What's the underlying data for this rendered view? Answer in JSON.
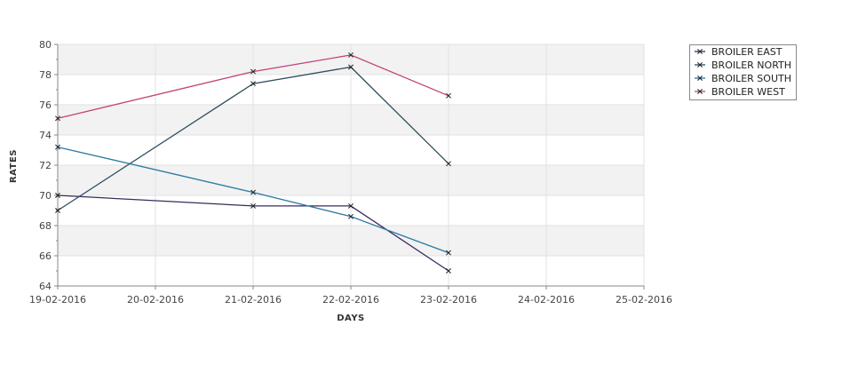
{
  "chart_data": {
    "type": "line",
    "title": "",
    "xlabel": "DAYS",
    "ylabel": "RATES",
    "x": [
      "19-02-2016",
      "20-02-2016",
      "21-02-2016",
      "22-02-2016",
      "23-02-2016",
      "24-02-2016",
      "25-02-2016"
    ],
    "ylim": [
      64,
      80
    ],
    "yticks": [
      64,
      66,
      68,
      70,
      72,
      74,
      76,
      78,
      80
    ],
    "grid": true,
    "legend_position": "top-right",
    "series": [
      {
        "name": "BROILER EAST",
        "color": "#3b2a5c",
        "points": [
          [
            "19-02-2016",
            70.0
          ],
          [
            "21-02-2016",
            69.3
          ],
          [
            "22-02-2016",
            69.3
          ],
          [
            "23-02-2016",
            65.0
          ]
        ]
      },
      {
        "name": "BROILER NORTH",
        "color": "#2d4e5e",
        "points": [
          [
            "19-02-2016",
            69.0
          ],
          [
            "21-02-2016",
            77.4
          ],
          [
            "22-02-2016",
            78.5
          ],
          [
            "23-02-2016",
            72.1
          ]
        ]
      },
      {
        "name": "BROILER SOUTH",
        "color": "#2a78a3",
        "points": [
          [
            "19-02-2016",
            73.2
          ],
          [
            "21-02-2016",
            70.2
          ],
          [
            "22-02-2016",
            68.6
          ],
          [
            "23-02-2016",
            66.2
          ]
        ]
      },
      {
        "name": "BROILER WEST",
        "color": "#c2427a",
        "points": [
          [
            "19-02-2016",
            75.1
          ],
          [
            "21-02-2016",
            78.2
          ],
          [
            "22-02-2016",
            79.3
          ],
          [
            "23-02-2016",
            76.6
          ]
        ]
      }
    ]
  }
}
